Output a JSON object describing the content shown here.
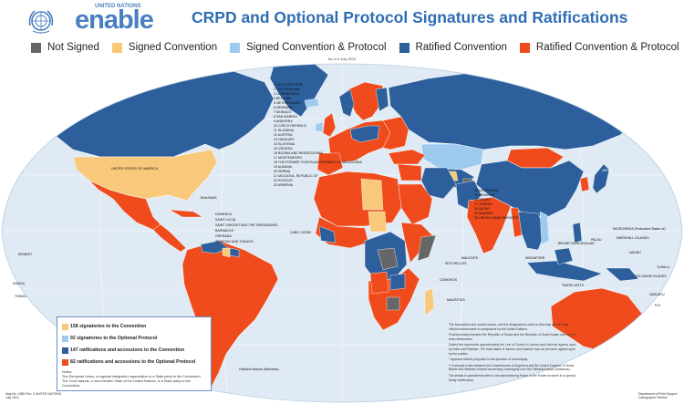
{
  "header": {
    "logo_super": "UNITED NATIONS",
    "logo_word": "enable",
    "title": "CRPD and Optional Protocol  Signatures and Ratifications",
    "date": "As of 4 July 2014"
  },
  "legend": [
    {
      "label": "Not Signed",
      "color": "#666666"
    },
    {
      "label": "Signed Convention",
      "color": "#f8c97a"
    },
    {
      "label": "Signed Convention & Protocol",
      "color": "#9fcaf0"
    },
    {
      "label": "Ratified Convention",
      "color": "#2c5f9c"
    },
    {
      "label": "Ratified Convention & Protocol",
      "color": "#ef4b1c"
    }
  ],
  "colors": {
    "ocean": "#dfeaf4",
    "land_default": "#2c5f9c",
    "graticule": "#ffffff",
    "border": "#ffffff"
  },
  "stats": [
    {
      "text": "158 signatories to the Convention",
      "color": "#f8c97a"
    },
    {
      "text": "92 signatories to the Optional Protocol",
      "color": "#9fcaf0"
    },
    {
      "text": "147 ratifications and accessions to the Convention",
      "color": "#2c5f9c"
    },
    {
      "text": "82 ratifications and accessions to the Optional Protocol",
      "color": "#ef4b1c"
    }
  ],
  "notes": {
    "heading": "Notes:",
    "line1": "The European Union, a regional integration organization is a State party to the Convention.",
    "line2": "The Cook Islands, a non-member State of the United Nations, is a State party to the Convention."
  },
  "map_labels": {
    "usa": "UNITED STATES OF AMERICA",
    "caribbean": "TRINIDAD AND TOBAGO",
    "dominica": "DOMINICA",
    "grenada": "GRENADA",
    "barbados": "BARBADOS",
    "stlucia": "SAINT LUCIA",
    "stvincent": "SAINT VINCENT AND THE GRENADINES",
    "bahamas": "BAHAMAS",
    "cabo": "CABO VERDE",
    "mauritius": "MAURITIUS",
    "seychelles": "SEYCHELLES",
    "comoros": "COMOROS",
    "maldives": "MALDIVES",
    "falkland": "Falkland Islands (Malvinas)",
    "kiribati": "KIRIBATI",
    "tuvalu": "TUVALU",
    "samoa": "SAMOA",
    "tonga": "TONGA",
    "fiji": "FIJI",
    "vanuatu": "VANUATU",
    "nauru": "NAURU",
    "palau": "PALAU",
    "marshall": "MARSHALL ISLANDS",
    "micronesia": "MICRONESIA (Federated States of)",
    "solomon": "SOLOMON ISLANDS",
    "singapore": "SINGAPORE",
    "brunei": "BRUNEI DARUSSALAM",
    "timor": "TIMOR-LESTE",
    "japan": "JAPAN"
  },
  "europe_list": [
    "1 LIECHTENSTEIN",
    "2 SWITZERLAND",
    "3 LUXEMBOURG",
    "4 BELGIUM",
    "5 NETHERLANDS",
    "6 DENMARK",
    "7 MONACO",
    "8 SAN MARINO",
    "9 ANDORRA",
    "10 CZECH REPUBLIC",
    "11 SLOVAKIA",
    "12 AUSTRIA",
    "13 HUNGARY",
    "14 SLOVENIA",
    "15 CROATIA",
    "16 BOSNIA AND HERZEGOVINA",
    "17 MONTENEGRO",
    "18 THE FORMER YUGOSLAV REPUBLIC OF MACEDONIA",
    "19 ALBANIA",
    "20 SERBIA",
    "21 MOLDOVA, REPUBLIC OF",
    "22 KOSOVO",
    "23 ARMENIA"
  ],
  "asia_list": [
    "24 AZERBAIJAN",
    "25 LEBANON",
    "26 ISRAEL",
    "27 JORDAN",
    "28 QATAR",
    "29 BAHRAIN",
    "30 UNITED ARAB EMIRATES"
  ],
  "footnotes": [
    "The boundaries and names shown, and the designations used on this map do not imply official endorsement or acceptance by the United Nations.",
    "Final boundary between the Republic of Sudan and the Republic of South Sudan has not yet been determined.",
    "Dotted line represents approximately the Line of Control in Jammu and Kashmir agreed upon by India and Pakistan. The final status of Jammu and Kashmir has not yet been agreed upon by the parties.",
    "* Appears without prejudice to the question of sovereignty.",
    "** A dispute exists between the Governments of Argentina and the United Kingdom of Great Britain and Northern Ireland concerning sovereignty over the Falkland Islands (Malvinas).",
    "The initials in parenthesis refer to the administering Power or the Power involved in a special treaty relationship."
  ],
  "footer": {
    "left1": "Map No. 4380 Rev. 3   UNITED NATIONS",
    "left2": "July 2014",
    "right1": "Department of Field Support",
    "right2": "Cartographic Section"
  }
}
